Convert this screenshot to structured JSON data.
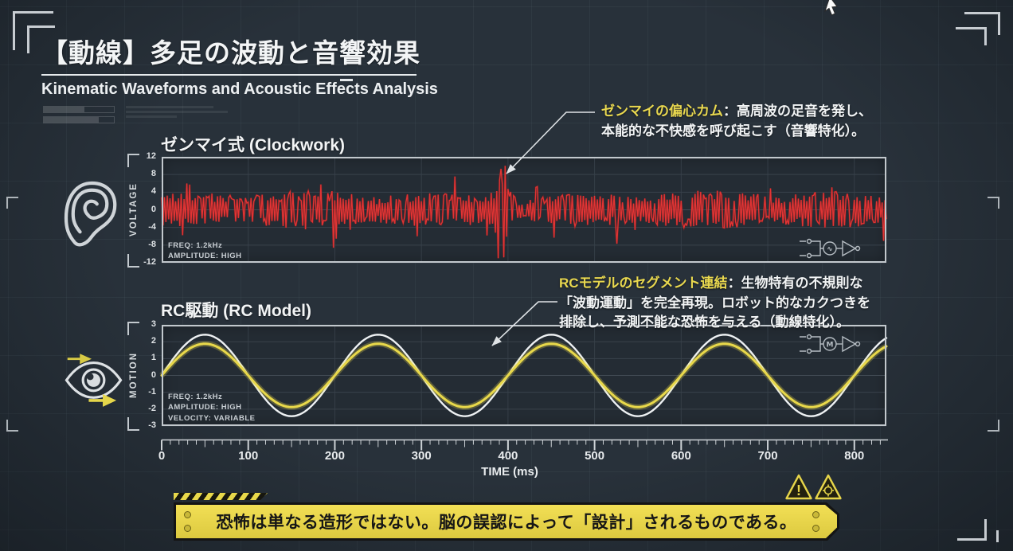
{
  "page": {
    "background": "#28313a",
    "accent_yellow": "#e8d84a",
    "signal_red": "#e23434",
    "frame_gray": "#c7ccd1"
  },
  "header": {
    "title": "【動線】多足の波動と音響効果",
    "subtitle": "Kinematic Waveforms and Acoustic Effects Analysis"
  },
  "annotations": {
    "clockwork": {
      "highlight": "ゼンマイの偏心カム",
      "line1_rest": "：高周波の足音を発し、",
      "line2": "本能的な不快感を呼び起こす（音響特化）。"
    },
    "rc": {
      "highlight": "RCモデルのセグメント連結",
      "line1_rest": "：生物特有の不規則な",
      "line2": "「波動運動」を完全再現。ロボット的なカクつきを",
      "line3": "排除し、予測不能な恐怖を与える（動線特化）。"
    }
  },
  "chart_data": [
    {
      "type": "line",
      "title": "ゼンマイ式 (Clockwork)",
      "ylabel": "VOLTAGE",
      "ylim": [
        -12,
        12
      ],
      "yticks": [
        12,
        8,
        4,
        0,
        -4,
        -8,
        -12
      ],
      "xlim_ms": [
        0,
        837
      ],
      "grid": true,
      "meta": [
        "FREQ: 1.2kHz",
        "AMPLITUDE: HIGH"
      ],
      "series": [
        {
          "name": "clockwork-acoustic-noise",
          "color": "#e23434",
          "kind": "noise",
          "points": 520,
          "seed": 11,
          "typical_amplitude": 4,
          "spike_probability": 0.05,
          "spike_extra_max": 3.2,
          "feature_spike": {
            "t_ms": 393,
            "value": 11
          }
        }
      ]
    },
    {
      "type": "line",
      "title": "RC駆動 (RC Model)",
      "ylabel": "MOTION",
      "ylim": [
        -3,
        3
      ],
      "yticks": [
        3,
        2,
        1,
        0,
        -1,
        -2,
        -3
      ],
      "xlim_ms": [
        0,
        837
      ],
      "grid": true,
      "meta": [
        "FREQ: 1.2kHz",
        "AMPLITUDE: HIGH",
        "VELOCITY: VARIABLE"
      ],
      "series": [
        {
          "name": "rc-motion-outer",
          "color": "#eef1f3",
          "kind": "sine",
          "amplitude": 2.42,
          "period_ms": 200,
          "phase_deg": 0
        },
        {
          "name": "rc-motion-inner",
          "color": "#e8d84a",
          "kind": "sine",
          "amplitude": 1.88,
          "period_ms": 200,
          "phase_deg": 0,
          "glow": true
        }
      ]
    }
  ],
  "xaxis": {
    "label": "TIME (ms)",
    "ticks": [
      0,
      100,
      200,
      300,
      400,
      500,
      600,
      700,
      800
    ],
    "minor_step_ms": 10,
    "major_step_ms": 100
  },
  "banner": {
    "text": "恐怖は単なる造形ではない。脳の誤認によって「設計」されるものである。"
  },
  "icons": {
    "left_top": "ear-icon",
    "left_bottom": "eye-motion-icon",
    "chart1_circuit": "signal-amp-circuit-icon",
    "chart2_circuit": "motor-amp-circuit-icon",
    "banner_warnings": [
      "warning-exclamation-icon",
      "warning-gear-icon"
    ],
    "cursor": "mouse-cursor-icon"
  }
}
